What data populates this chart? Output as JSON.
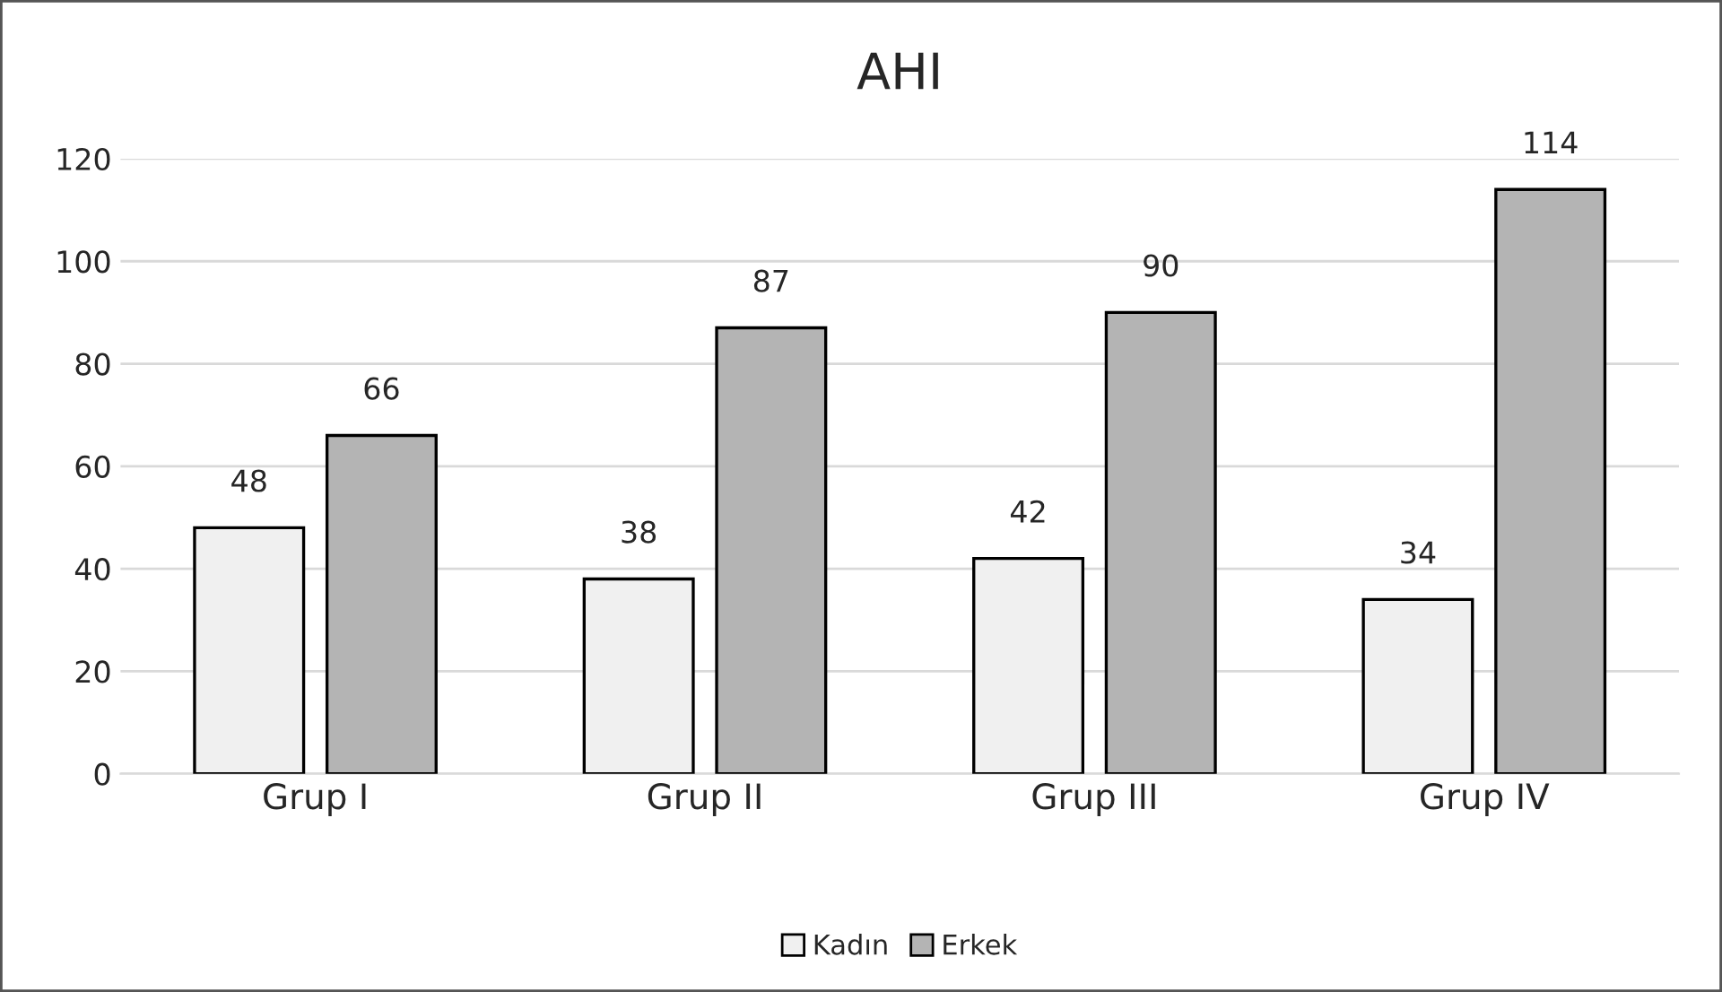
{
  "chart_data": {
    "type": "bar",
    "title": "AHI",
    "categories": [
      "Grup I",
      "Grup II",
      "Grup III",
      "Grup IV"
    ],
    "series": [
      {
        "name": "Kadın",
        "color": "#f0f0f0",
        "values": [
          48,
          38,
          42,
          34
        ]
      },
      {
        "name": "Erkek",
        "color": "#b4b4b4",
        "values": [
          66,
          87,
          90,
          114
        ]
      }
    ],
    "ylim": [
      0,
      120
    ],
    "yticks": [
      0,
      20,
      40,
      60,
      80,
      100,
      120
    ],
    "grid": "y",
    "legend": "bottom",
    "data_labels": true
  }
}
